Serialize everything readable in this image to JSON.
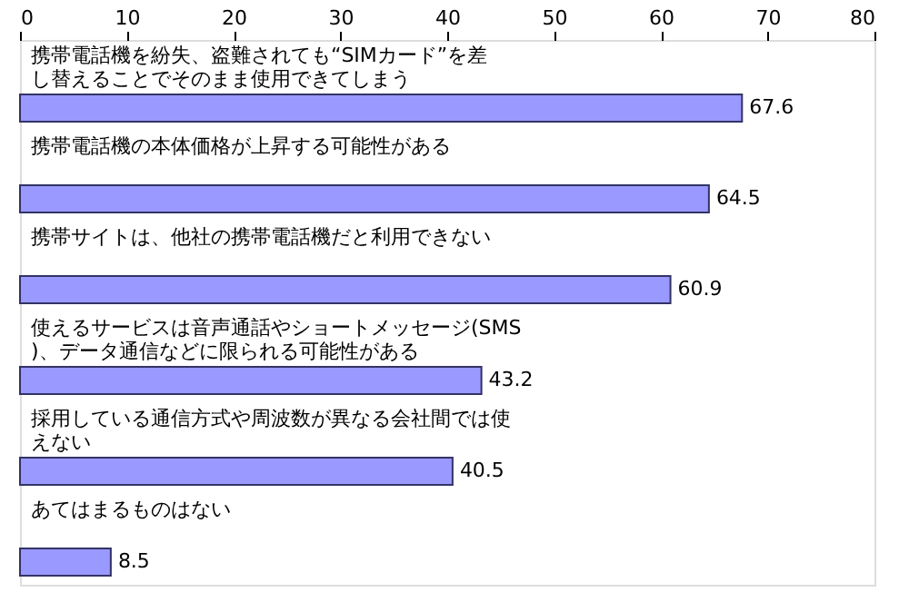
{
  "chart_data": {
    "type": "bar",
    "orientation": "horizontal",
    "categories": [
      "携帯電話機を紛失、盗難されても“SIMカード”を差し替えることでそのまま使用できてしまう",
      "携帯電話機の本体価格が上昇する可能性がある",
      "携帯サイトは、他社の携帯電話機だと利用できない",
      "使えるサービスは音声通話やショートメッセージ(SMS)、データ通信などに限られる可能性がある",
      "採用している通信方式や周波数が異なる会社間では使えない",
      "あてはまるものはない"
    ],
    "values": [
      67.6,
      64.5,
      60.9,
      43.2,
      40.5,
      8.5
    ],
    "color": "#9999ff",
    "xlim": [
      0,
      80
    ],
    "xticks": [
      0,
      10,
      20,
      30,
      40,
      50,
      60,
      70,
      80
    ],
    "grid": false,
    "data_labels": true
  }
}
